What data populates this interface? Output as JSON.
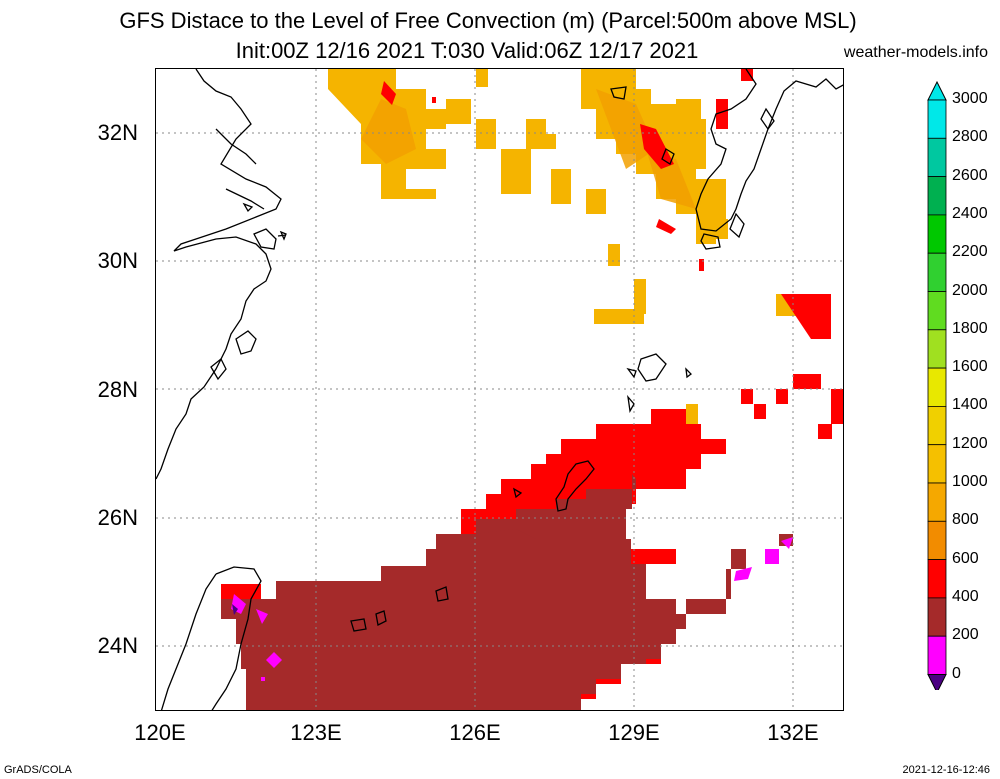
{
  "header": {
    "title_line1": "GFS Distace to the Level of Free Convection (m) (Parcel:500m above MSL)",
    "title_line2": "Init:00Z 12/16 2021 T:030 Valid:06Z 12/17 2021",
    "site": "weather-models.info"
  },
  "axes": {
    "lat_labels": [
      "32N",
      "30N",
      "28N",
      "26N",
      "24N"
    ],
    "lon_labels": [
      "120E",
      "123E",
      "126E",
      "129E",
      "132E"
    ]
  },
  "colorbar": {
    "labels": [
      "3000",
      "2800",
      "2600",
      "2400",
      "2200",
      "2000",
      "1800",
      "1600",
      "1400",
      "1200",
      "1000",
      "800",
      "600",
      "400",
      "200",
      "0"
    ],
    "colors": [
      "#00e8e8",
      "#00c8a0",
      "#00b050",
      "#00c800",
      "#30d030",
      "#60dc20",
      "#a0e020",
      "#e8e800",
      "#f0d000",
      "#f5c000",
      "#f5a800",
      "#f28c00",
      "#ff0000",
      "#a52a2a",
      "#ff00ff",
      "#4b0082"
    ]
  },
  "field_colors": {
    "orange": "#f5b400",
    "dark_orange": "#f2a000",
    "red": "#ff0000",
    "brown": "#a52a2a",
    "magenta": "#ff00ff",
    "purple": "#4b0082"
  },
  "footer": {
    "left": "GrADS/COLA",
    "right": "2021-12-16-12:46"
  }
}
